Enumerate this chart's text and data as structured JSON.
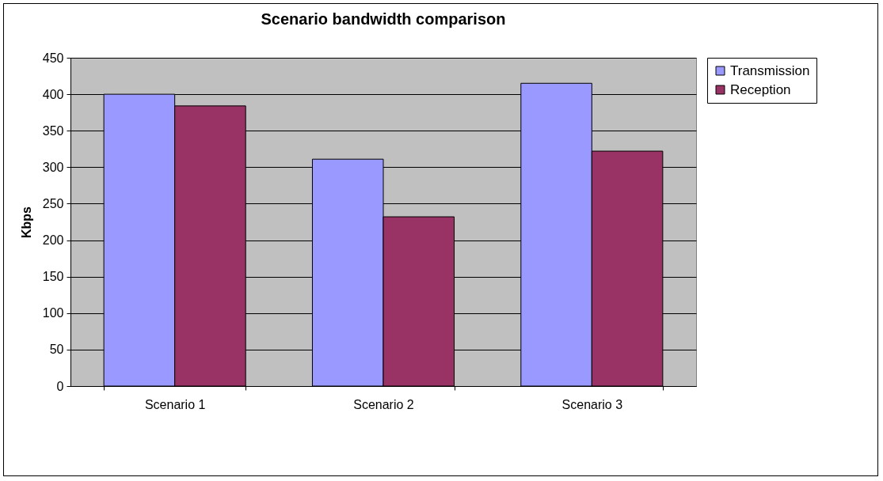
{
  "chart_data": {
    "type": "bar",
    "title": "Scenario bandwidth comparison",
    "ylabel": "Kbps",
    "categories": [
      "Scenario 1",
      "Scenario 2",
      "Scenario 3"
    ],
    "series": [
      {
        "name": "Transmission",
        "color": "#9999ff",
        "values": [
          400,
          311,
          415
        ]
      },
      {
        "name": "Reception",
        "color": "#993366",
        "values": [
          384,
          232,
          322
        ]
      }
    ],
    "ylim": [
      0,
      450
    ],
    "yticks": [
      0,
      50,
      100,
      150,
      200,
      250,
      300,
      350,
      400,
      450
    ],
    "grid": "y",
    "legend": "right"
  }
}
